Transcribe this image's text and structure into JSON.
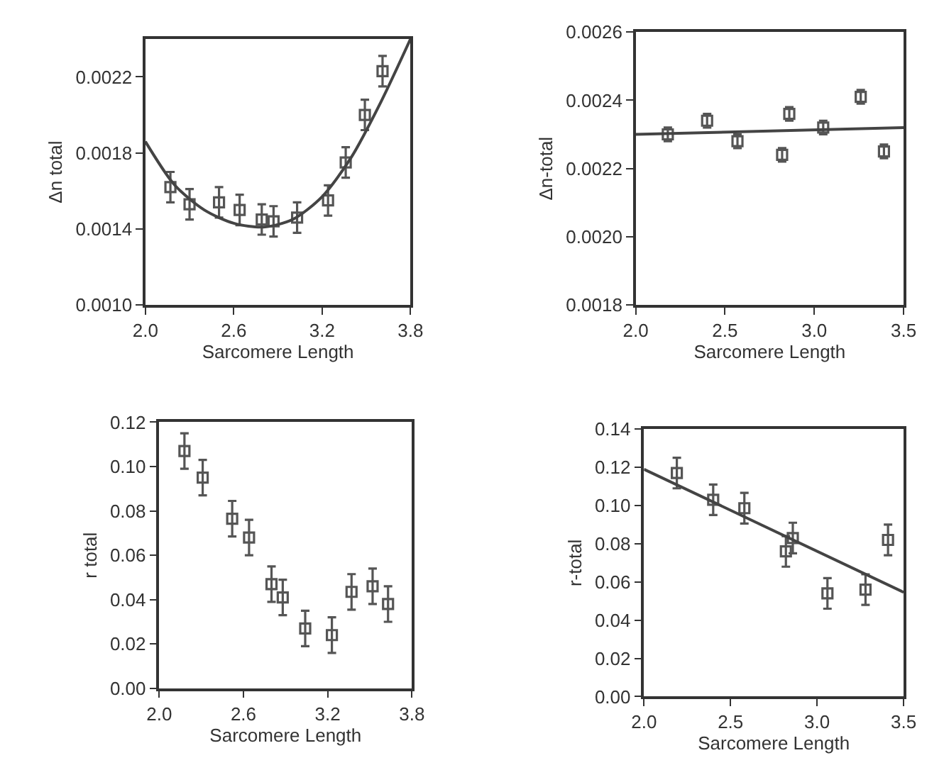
{
  "chart_data": [
    {
      "type": "scatter",
      "xlabel": "Sarcomere Length",
      "ylabel": "Δn total",
      "xlim": [
        2.0,
        3.8
      ],
      "ylim": [
        0.001,
        0.0024
      ],
      "xticks": [
        {
          "value": 2.0,
          "label": "2.0"
        },
        {
          "value": 2.6,
          "label": "2.6"
        },
        {
          "value": 3.2,
          "label": "3.2"
        },
        {
          "value": 3.8,
          "label": "3.8"
        }
      ],
      "yticks": [
        {
          "value": 0.001,
          "label": "0.0010"
        },
        {
          "value": 0.0014,
          "label": "0.0014"
        },
        {
          "value": 0.0018,
          "label": "0.0018"
        },
        {
          "value": 0.0022,
          "label": "0.0022"
        }
      ],
      "series": [
        {
          "marker": "square",
          "color": "#555555",
          "x": [
            2.17,
            2.3,
            2.5,
            2.64,
            2.79,
            2.87,
            3.03,
            3.24,
            3.36,
            3.49,
            3.61
          ],
          "values": [
            0.00162,
            0.00153,
            0.00154,
            0.0015,
            0.00145,
            0.00144,
            0.00146,
            0.00155,
            0.00175,
            0.002,
            0.00223
          ],
          "errors": [
            8e-05,
            8e-05,
            8e-05,
            8e-05,
            8e-05,
            8e-05,
            8e-05,
            8e-05,
            8e-05,
            8e-05,
            8e-05
          ]
        },
        {
          "type": "line",
          "marker": "none",
          "line_style": "solid",
          "color": "#444444",
          "x": [
            2.0,
            2.2,
            2.4,
            2.6,
            2.8,
            3.0,
            3.2,
            3.4,
            3.6,
            3.8
          ],
          "values": [
            0.00186,
            0.00163,
            0.0015,
            0.00143,
            0.00141,
            0.00145,
            0.00157,
            0.00178,
            0.00207,
            0.0024
          ]
        }
      ]
    },
    {
      "type": "scatter",
      "xlabel": "Sarcomere Length",
      "ylabel": "Δn-total",
      "xlim": [
        2.0,
        3.5
      ],
      "ylim": [
        0.0018,
        0.0026
      ],
      "xticks": [
        {
          "value": 2.0,
          "label": "2.0"
        },
        {
          "value": 2.5,
          "label": "2.5"
        },
        {
          "value": 3.0,
          "label": "3.0"
        },
        {
          "value": 3.5,
          "label": "3.5"
        }
      ],
      "yticks": [
        {
          "value": 0.0018,
          "label": "0.0018"
        },
        {
          "value": 0.002,
          "label": "0.0020"
        },
        {
          "value": 0.0022,
          "label": "0.0022"
        },
        {
          "value": 0.0024,
          "label": "0.0024"
        },
        {
          "value": 0.0026,
          "label": "0.0026"
        }
      ],
      "series": [
        {
          "marker": "square",
          "color": "#555555",
          "x": [
            2.18,
            2.4,
            2.57,
            2.82,
            2.86,
            3.05,
            3.26,
            3.39
          ],
          "values": [
            0.0023,
            0.00234,
            0.00228,
            0.00224,
            0.00236,
            0.00232,
            0.00241,
            0.00225
          ],
          "errors": [
            2e-05,
            2e-05,
            2e-05,
            2e-05,
            2e-05,
            2e-05,
            2e-05,
            2e-05
          ]
        },
        {
          "type": "line",
          "marker": "none",
          "line_style": "solid",
          "color": "#444444",
          "x": [
            2.0,
            3.5
          ],
          "values": [
            0.0023,
            0.00232
          ]
        }
      ]
    },
    {
      "type": "scatter",
      "xlabel": "Sarcomere Length",
      "ylabel": "r total",
      "xlim": [
        2.0,
        3.8
      ],
      "ylim": [
        0.0,
        0.12
      ],
      "xticks": [
        {
          "value": 2.0,
          "label": "2.0"
        },
        {
          "value": 2.6,
          "label": "2.6"
        },
        {
          "value": 3.2,
          "label": "3.2"
        },
        {
          "value": 3.8,
          "label": "3.8"
        }
      ],
      "yticks": [
        {
          "value": 0.0,
          "label": "0.00"
        },
        {
          "value": 0.02,
          "label": "0.02"
        },
        {
          "value": 0.04,
          "label": "0.04"
        },
        {
          "value": 0.06,
          "label": "0.06"
        },
        {
          "value": 0.08,
          "label": "0.08"
        },
        {
          "value": 0.1,
          "label": "0.10"
        },
        {
          "value": 0.12,
          "label": "0.12"
        }
      ],
      "series": [
        {
          "marker": "square",
          "color": "#555555",
          "x": [
            2.18,
            2.31,
            2.52,
            2.64,
            2.8,
            2.88,
            3.04,
            3.23,
            3.37,
            3.52,
            3.63
          ],
          "values": [
            0.107,
            0.095,
            0.0765,
            0.068,
            0.047,
            0.041,
            0.027,
            0.024,
            0.0435,
            0.046,
            0.038
          ],
          "errors": [
            0.008,
            0.008,
            0.008,
            0.008,
            0.008,
            0.008,
            0.008,
            0.008,
            0.008,
            0.008,
            0.008
          ]
        }
      ]
    },
    {
      "type": "scatter",
      "xlabel": "Sarcomere Length",
      "ylabel": "r-total",
      "xlim": [
        2.0,
        3.5
      ],
      "ylim": [
        0.0,
        0.14
      ],
      "xticks": [
        {
          "value": 2.0,
          "label": "2.0"
        },
        {
          "value": 2.5,
          "label": "2.5"
        },
        {
          "value": 3.0,
          "label": "3.0"
        },
        {
          "value": 3.5,
          "label": "3.5"
        }
      ],
      "yticks": [
        {
          "value": 0.0,
          "label": "0.00"
        },
        {
          "value": 0.02,
          "label": "0.02"
        },
        {
          "value": 0.04,
          "label": "0.04"
        },
        {
          "value": 0.06,
          "label": "0.06"
        },
        {
          "value": 0.08,
          "label": "0.08"
        },
        {
          "value": 0.1,
          "label": "0.10"
        },
        {
          "value": 0.12,
          "label": "0.12"
        },
        {
          "value": 0.14,
          "label": "0.14"
        }
      ],
      "series": [
        {
          "marker": "square",
          "color": "#555555",
          "x": [
            2.19,
            2.4,
            2.58,
            2.82,
            2.86,
            3.06,
            3.28,
            3.41
          ],
          "values": [
            0.117,
            0.103,
            0.0986,
            0.076,
            0.083,
            0.054,
            0.056,
            0.082
          ],
          "errors": [
            0.008,
            0.008,
            0.008,
            0.008,
            0.008,
            0.008,
            0.008,
            0.008
          ]
        },
        {
          "type": "line",
          "marker": "none",
          "line_style": "solid",
          "color": "#444444",
          "x": [
            2.0,
            3.5
          ],
          "values": [
            0.119,
            0.0546
          ]
        }
      ]
    }
  ]
}
